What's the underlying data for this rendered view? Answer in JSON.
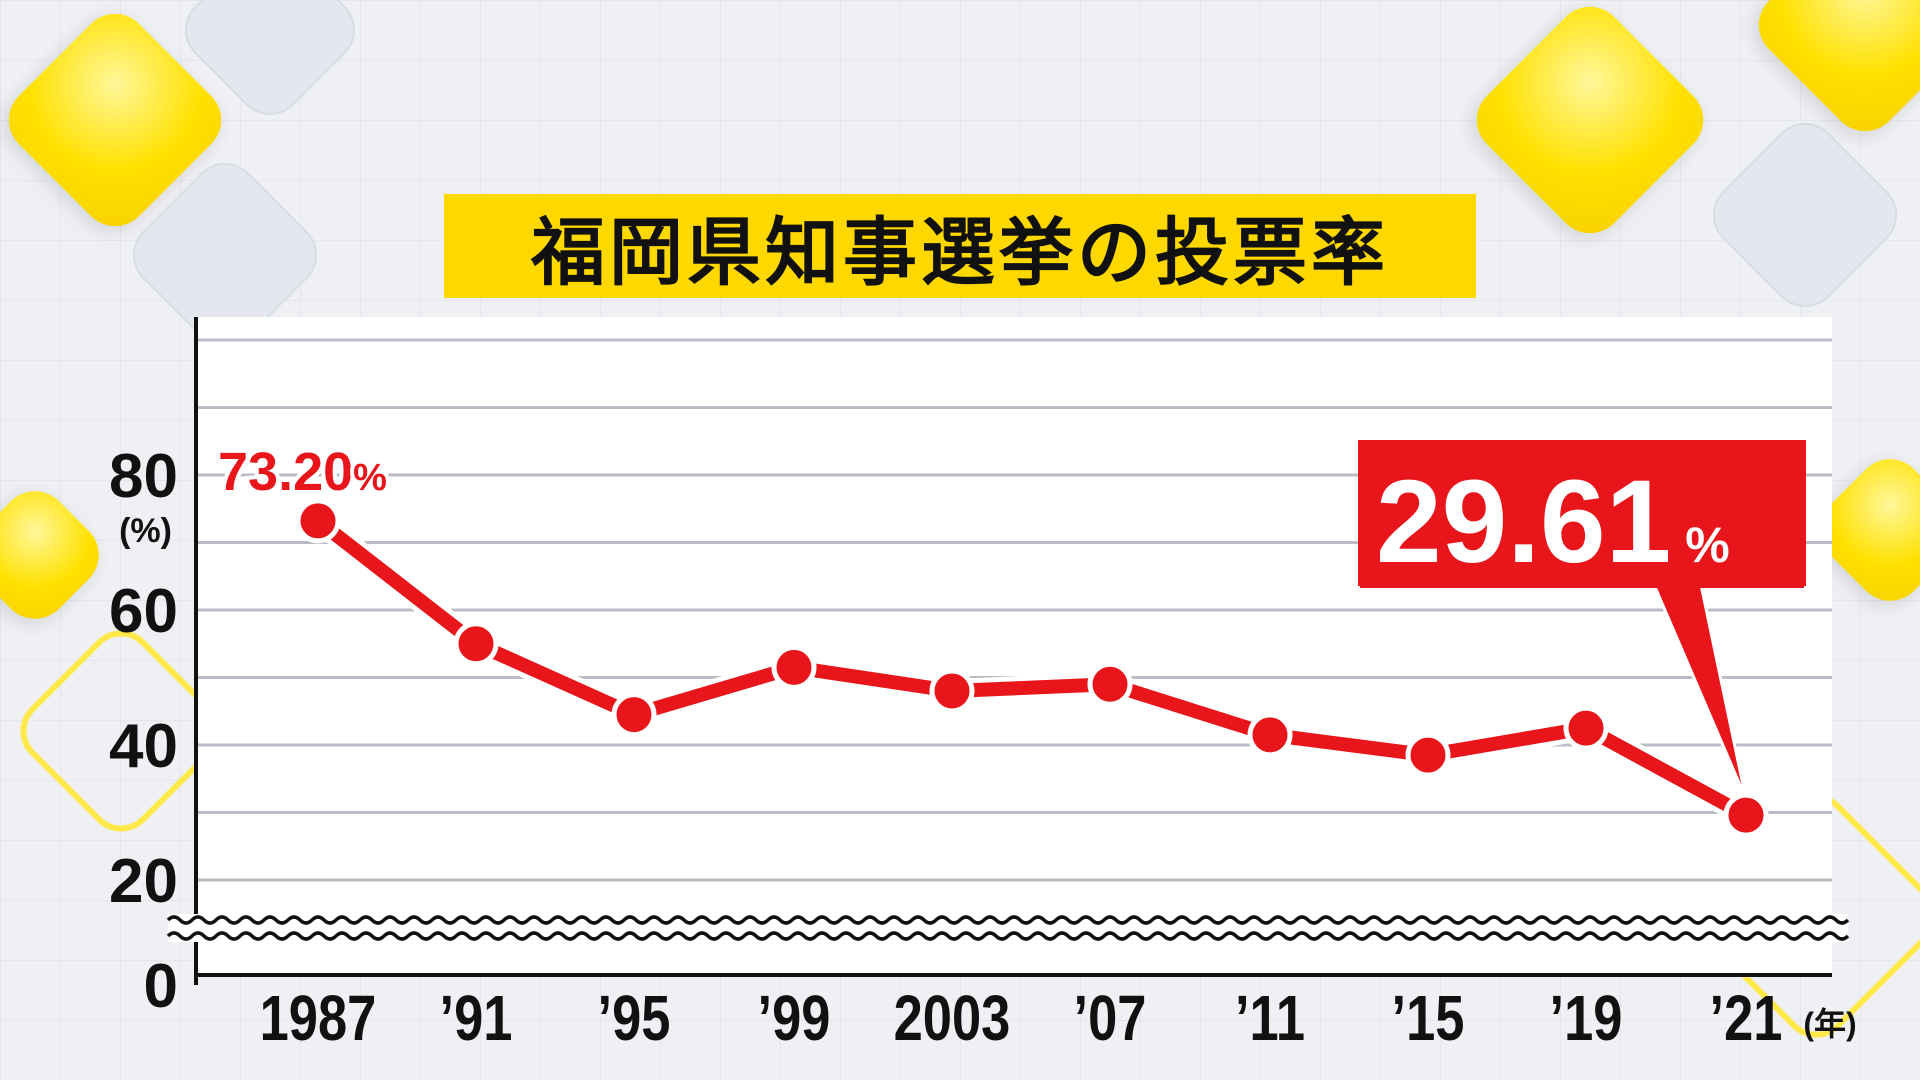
{
  "title": "福岡県知事選挙の投票率",
  "colors": {
    "title_bg": "#ffd800",
    "line": "#e8161b",
    "grid": "#b9bcc4",
    "callout_bg": "#e8161b"
  },
  "chart_data": {
    "type": "line",
    "title": "福岡県知事選挙の投票率",
    "categories": [
      "1987",
      "’91",
      "’95",
      "’99",
      "2003",
      "’07",
      "’11",
      "’15",
      "’19",
      "’21"
    ],
    "series": [
      {
        "values": [
          73.2,
          55.0,
          44.5,
          51.5,
          48.0,
          49.0,
          41.5,
          38.5,
          42.5,
          29.61
        ]
      }
    ],
    "ylim": [
      0,
      100
    ],
    "yticks": [
      "0",
      "20",
      "40",
      "60",
      "80"
    ],
    "y_unit": "(%)",
    "x_unit": "(年)",
    "axis_break": true,
    "grid": true,
    "annotations": {
      "first": {
        "value": "73.20",
        "unit": "%"
      },
      "last": {
        "value": "29.61",
        "unit": "%"
      }
    }
  }
}
